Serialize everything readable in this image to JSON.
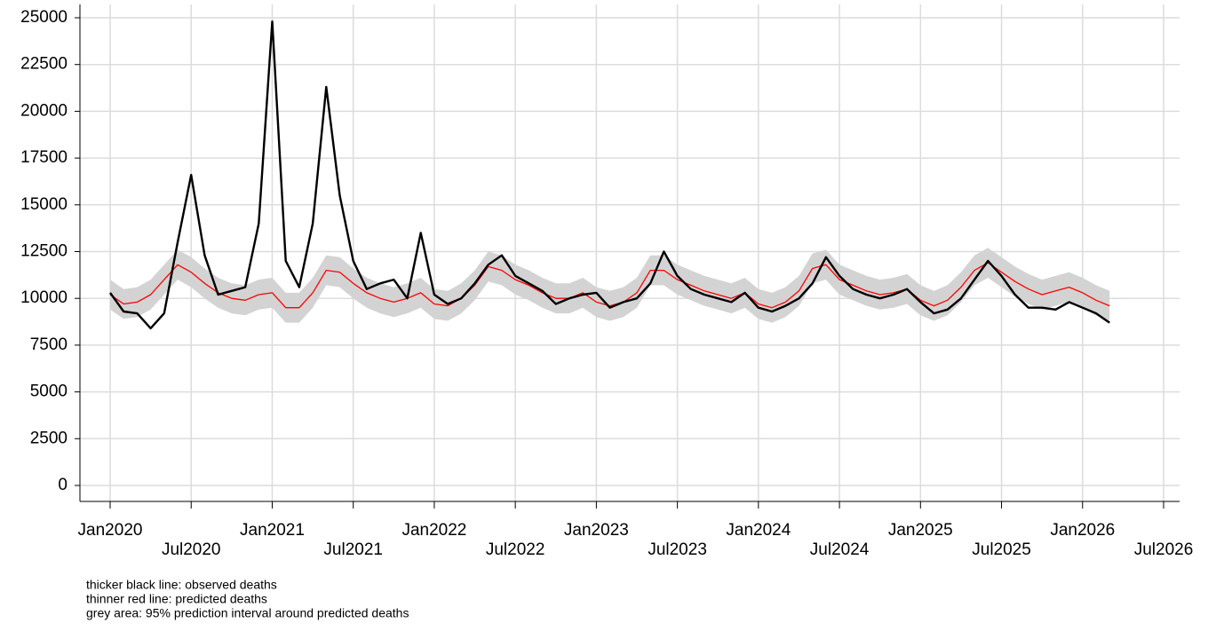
{
  "chart_data": {
    "type": "line",
    "x": [
      "2020-01",
      "2020-02",
      "2020-03",
      "2020-04",
      "2020-05",
      "2020-06",
      "2020-07",
      "2020-08",
      "2020-09",
      "2020-10",
      "2020-11",
      "2020-12",
      "2021-01",
      "2021-02",
      "2021-03",
      "2021-04",
      "2021-05",
      "2021-06",
      "2021-07",
      "2021-08",
      "2021-09",
      "2021-10",
      "2021-11",
      "2021-12",
      "2022-01",
      "2022-02",
      "2022-03",
      "2022-04",
      "2022-05",
      "2022-06",
      "2022-07",
      "2022-08",
      "2022-09",
      "2022-10",
      "2022-11",
      "2022-12",
      "2023-01",
      "2023-02",
      "2023-03",
      "2023-04",
      "2023-05",
      "2023-06",
      "2023-07",
      "2023-08",
      "2023-09",
      "2023-10",
      "2023-11",
      "2023-12",
      "2024-01",
      "2024-02",
      "2024-03",
      "2024-04",
      "2024-05",
      "2024-06",
      "2024-07",
      "2024-08",
      "2024-09",
      "2024-10",
      "2024-11",
      "2024-12",
      "2025-01",
      "2025-02",
      "2025-03",
      "2025-04",
      "2025-05",
      "2025-06",
      "2025-07",
      "2025-08",
      "2025-09",
      "2025-10",
      "2025-11",
      "2025-12",
      "2026-01",
      "2026-02",
      "2026-03"
    ],
    "band": {
      "color": "#d3d3d3",
      "lower": [
        9400,
        8900,
        9000,
        9400,
        10200,
        11000,
        10600,
        10000,
        9500,
        9200,
        9100,
        9400,
        9500,
        8700,
        8700,
        9500,
        10700,
        10600,
        10000,
        9500,
        9200,
        9000,
        9200,
        9500,
        8900,
        8800,
        9200,
        9900,
        10900,
        10700,
        10200,
        9900,
        9500,
        9200,
        9200,
        9500,
        9000,
        8800,
        9000,
        9500,
        10700,
        10700,
        10200,
        9900,
        9600,
        9400,
        9200,
        9500,
        8900,
        8700,
        9000,
        9600,
        10800,
        11000,
        10200,
        9900,
        9600,
        9400,
        9500,
        9700,
        9100,
        8800,
        9100,
        9800,
        10700,
        11100,
        10600,
        10100,
        9700,
        9400,
        9600,
        9800,
        9500,
        9100,
        8800
      ],
      "upper": [
        11000,
        10500,
        10600,
        11000,
        11800,
        12600,
        12200,
        11600,
        11100,
        10800,
        10700,
        11000,
        11100,
        10300,
        10300,
        11100,
        12300,
        12200,
        11600,
        11100,
        10800,
        10600,
        10800,
        11100,
        10500,
        10400,
        10800,
        11500,
        12500,
        12300,
        11800,
        11500,
        11100,
        10800,
        10800,
        11100,
        10600,
        10400,
        10600,
        11100,
        12300,
        12300,
        11800,
        11500,
        11200,
        11000,
        10800,
        11100,
        10500,
        10300,
        10600,
        11200,
        12400,
        12600,
        11800,
        11500,
        11200,
        11000,
        11100,
        11300,
        10700,
        10400,
        10700,
        11400,
        12300,
        12700,
        12200,
        11700,
        11300,
        11000,
        11200,
        11400,
        11100,
        10700,
        10400
      ]
    },
    "series": [
      {
        "color": "#ff0000",
        "width": 1.3,
        "values": [
          10200,
          9700,
          9800,
          10200,
          11000,
          11800,
          11400,
          10800,
          10300,
          10000,
          9900,
          10200,
          10300,
          9500,
          9500,
          10300,
          11500,
          11400,
          10800,
          10300,
          10000,
          9800,
          10000,
          10300,
          9700,
          9600,
          10000,
          10700,
          11700,
          11500,
          11000,
          10700,
          10300,
          10000,
          10000,
          10300,
          9800,
          9600,
          9800,
          10300,
          11500,
          11500,
          11000,
          10700,
          10400,
          10200,
          10000,
          10300,
          9700,
          9500,
          9800,
          10400,
          11600,
          11800,
          11000,
          10700,
          10400,
          10200,
          10300,
          10500,
          9900,
          9600,
          9900,
          10600,
          11500,
          11900,
          11400,
          10900,
          10500,
          10200,
          10400,
          10600,
          10300,
          9900,
          9600
        ]
      },
      {
        "color": "#000000",
        "width": 2.4,
        "values": [
          10300,
          9300,
          9200,
          8400,
          9200,
          13000,
          16600,
          12300,
          10200,
          10400,
          10600,
          14000,
          24800,
          12000,
          10600,
          14000,
          21300,
          15500,
          12000,
          10500,
          10800,
          11000,
          10000,
          13500,
          10200,
          9700,
          10000,
          10800,
          11800,
          12300,
          11200,
          10800,
          10400,
          9700,
          10000,
          10200,
          10300,
          9500,
          9800,
          10000,
          10800,
          12500,
          11200,
          10500,
          10200,
          10000,
          9800,
          10300,
          9500,
          9300,
          9600,
          10000,
          10800,
          12200,
          11200,
          10500,
          10200,
          10000,
          10200,
          10500,
          9800,
          9200,
          9400,
          10000,
          11000,
          12000,
          11200,
          10200,
          9500,
          9500,
          9400,
          9800,
          9500,
          9200,
          8700
        ]
      }
    ],
    "xlim": [
      "2020-01",
      "2026-07"
    ],
    "xticks": [
      {
        "value": "2020-01",
        "label": "Jan2020"
      },
      {
        "value": "2020-07",
        "label": "Jul2020"
      },
      {
        "value": "2021-01",
        "label": "Jan2021"
      },
      {
        "value": "2021-07",
        "label": "Jul2021"
      },
      {
        "value": "2022-01",
        "label": "Jan2022"
      },
      {
        "value": "2022-07",
        "label": "Jul2022"
      },
      {
        "value": "2023-01",
        "label": "Jan2023"
      },
      {
        "value": "2023-07",
        "label": "Jul2023"
      },
      {
        "value": "2024-01",
        "label": "Jan2024"
      },
      {
        "value": "2024-07",
        "label": "Jul2024"
      },
      {
        "value": "2025-01",
        "label": "Jan2025"
      },
      {
        "value": "2025-07",
        "label": "Jul2025"
      },
      {
        "value": "2026-01",
        "label": "Jan2026"
      },
      {
        "value": "2026-07",
        "label": "Jul2026"
      }
    ],
    "ylim": [
      0,
      25000
    ],
    "yticks": [
      0,
      2500,
      5000,
      7500,
      10000,
      12500,
      15000,
      17500,
      20000,
      22500,
      25000
    ],
    "grid": true,
    "notes": [
      "thicker black line: observed deaths",
      "thinner red line: predicted deaths",
      "grey area: 95% prediction interval around predicted deaths"
    ]
  }
}
